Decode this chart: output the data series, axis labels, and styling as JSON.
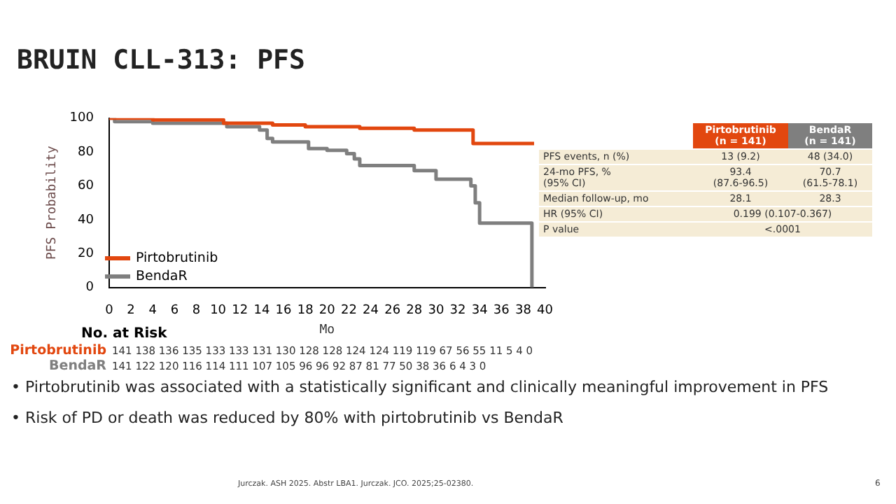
{
  "chart_data": {
    "type": "step",
    "title": "BRUIN CLL-313: PFS",
    "xlabel": "Mo",
    "ylabel": "PFS Probability",
    "xlim": [
      0,
      40
    ],
    "xticks": [
      0,
      2,
      4,
      6,
      8,
      10,
      12,
      14,
      16,
      18,
      20,
      22,
      24,
      26,
      28,
      30,
      32,
      34,
      36,
      38,
      40
    ],
    "ylim": [
      0,
      100
    ],
    "yticks": [
      0,
      20,
      40,
      60,
      80,
      100
    ],
    "grid": false,
    "legend": "bottom left",
    "series": [
      {
        "name": "Pirtobrutinib",
        "color": "#e2470f",
        "x": [
          0,
          4,
          10.5,
          15,
          18,
          23,
          28,
          33.4,
          39
        ],
        "values": [
          100,
          99,
          97,
          96,
          95,
          94,
          93,
          85,
          85
        ]
      },
      {
        "name": "BendaR",
        "color": "#7f7f7f",
        "x": [
          0,
          0.5,
          4,
          10.8,
          13.8,
          14.5,
          15,
          18.3,
          20,
          21.8,
          22.5,
          23,
          28,
          30,
          33.2,
          33.6,
          34,
          38.8
        ],
        "values": [
          100,
          98,
          97,
          95,
          93,
          88,
          86,
          82,
          81,
          79,
          76,
          72,
          69,
          64,
          60,
          50,
          38,
          0
        ]
      }
    ],
    "annotations": [
      "No. at Risk",
      "Pirtobrutinib",
      "141 138 136 135 133 133 131 130 128 128 124 124 119 119 67 56 55 11 5 4 0",
      "BendaR",
      "141 122 120 116 114 111 107 105 96 96 92 87 81 77 50 38 36 6 4 3 0",
      "Pirtobrutinib\n(n = 141)",
      "BendaR\n(n = 141)",
      "PFS events, n (%)",
      "13 (9.2)",
      "48 (34.0)",
      "24-mo PFS, %\n(95% CI)",
      "93.4\n(87.6-96.5)",
      "70.7\n(61.5-78.1)",
      "Median follow-up, mo",
      "28.1",
      "28.3",
      "HR (95% CI)",
      "0.199 (0.107-0.367)",
      "P value",
      "<.0001",
      "Pirtobrutinib was associated with a statistically significant and clinically meaningful improvement in PFS",
      "Risk of PD or death was reduced by 80% with pirtobrutinib vs BendaR",
      "Jurczak. ASH 2025. Abstr LBA1. Jurczak. JCO. 2025;25-02380.",
      "6",
      "•",
      "•"
    ]
  }
}
